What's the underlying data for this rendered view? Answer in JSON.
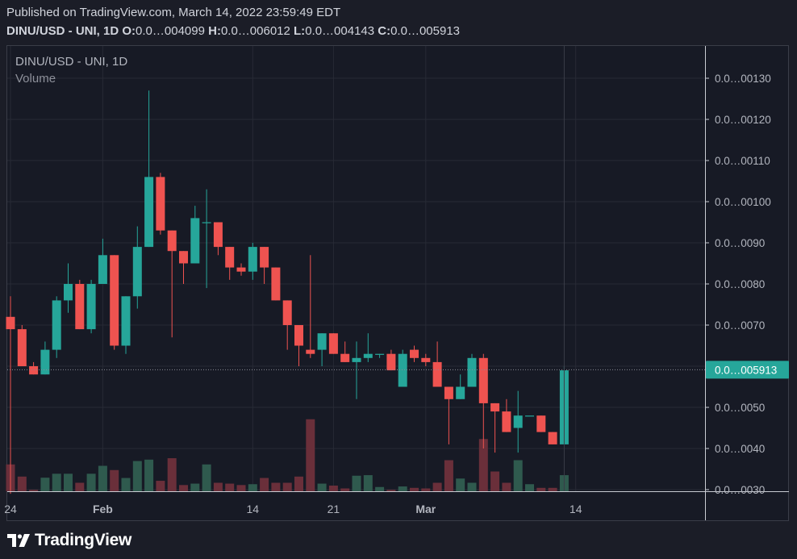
{
  "header": {
    "published": "Published on TradingView.com, March 14, 2022 23:59:49 EDT",
    "symbol": "DINU/USD - UNI, 1D",
    "o_label": "O:",
    "o_value": "0.0…004099",
    "h_label": "H:",
    "h_value": "0.0…006012",
    "l_label": "L:",
    "l_value": "0.0…004143",
    "c_label": "C:",
    "c_value": "0.0…005913"
  },
  "legend": {
    "symbol": "DINU/USD - UNI, 1D",
    "volume": "Volume"
  },
  "price_tag": "0.0…005913",
  "footer": {
    "brand": "TradingView"
  },
  "colors": {
    "up": "#26a69a",
    "down": "#ef5350",
    "background": "#171a25",
    "grid": "#272a35",
    "text": "#b2b5be"
  },
  "chart_data": {
    "type": "candlestick",
    "y_ticks": [
      {
        "value": 1.3e-05,
        "label": "0.0…00130"
      },
      {
        "value": 1.2e-05,
        "label": "0.0…00120"
      },
      {
        "value": 1.1e-05,
        "label": "0.0…00110"
      },
      {
        "value": 1e-05,
        "label": "0.0…00100"
      },
      {
        "value": 9e-06,
        "label": "0.0…0090"
      },
      {
        "value": 8e-06,
        "label": "0.0…0080"
      },
      {
        "value": 7e-06,
        "label": "0.0…0070"
      },
      {
        "value": 6e-06,
        "label": "0.0…0060"
      },
      {
        "value": 5e-06,
        "label": "0.0…0050"
      },
      {
        "value": 4e-06,
        "label": "0.0…0040"
      },
      {
        "value": 3e-06,
        "label": "0.0…0030"
      }
    ],
    "x_ticks": [
      {
        "index": 0,
        "label": "24"
      },
      {
        "index": 8,
        "label": "Feb"
      },
      {
        "index": 21,
        "label": "14"
      },
      {
        "index": 28,
        "label": "21"
      },
      {
        "index": 36,
        "label": "Mar"
      },
      {
        "index": 49,
        "label": "14"
      }
    ],
    "last_price": 5.913e-06,
    "candles": [
      {
        "date": "Jan 24",
        "o": 7.2e-06,
        "h": 7.7e-06,
        "l": 2.9e-06,
        "c": 6.9e-06,
        "v": 0.95
      },
      {
        "date": "Jan 25",
        "o": 6.9e-06,
        "h": 7e-06,
        "l": 6e-06,
        "c": 6e-06,
        "v": 0.52
      },
      {
        "date": "Jan 26",
        "o": 6e-06,
        "h": 6.1e-06,
        "l": 5.8e-06,
        "c": 5.8e-06,
        "v": 0.05
      },
      {
        "date": "Jan 27",
        "o": 5.8e-06,
        "h": 6.6e-06,
        "l": 5.8e-06,
        "c": 6.4e-06,
        "v": 0.48
      },
      {
        "date": "Jan 28",
        "o": 6.4e-06,
        "h": 7.7e-06,
        "l": 6.2e-06,
        "c": 7.6e-06,
        "v": 0.62
      },
      {
        "date": "Jan 29",
        "o": 7.6e-06,
        "h": 8.5e-06,
        "l": 7.3e-06,
        "c": 8e-06,
        "v": 0.62
      },
      {
        "date": "Jan 30",
        "o": 8e-06,
        "h": 8.1e-06,
        "l": 6.9e-06,
        "c": 6.9e-06,
        "v": 0.3
      },
      {
        "date": "Jan 31",
        "o": 6.9e-06,
        "h": 8.1e-06,
        "l": 6.8e-06,
        "c": 8e-06,
        "v": 0.62
      },
      {
        "date": "Feb 1",
        "o": 8e-06,
        "h": 9.1e-06,
        "l": 8e-06,
        "c": 8.7e-06,
        "v": 0.9
      },
      {
        "date": "Feb 2",
        "o": 8.7e-06,
        "h": 8.7e-06,
        "l": 6.4e-06,
        "c": 6.5e-06,
        "v": 0.75
      },
      {
        "date": "Feb 3",
        "o": 6.5e-06,
        "h": 7.7e-06,
        "l": 6.3e-06,
        "c": 7.7e-06,
        "v": 0.47
      },
      {
        "date": "Feb 4",
        "o": 7.7e-06,
        "h": 9.4e-06,
        "l": 7.4e-06,
        "c": 8.9e-06,
        "v": 1.07
      },
      {
        "date": "Feb 5",
        "o": 8.9e-06,
        "h": 1.27e-05,
        "l": 8.9e-06,
        "c": 1.06e-05,
        "v": 1.12
      },
      {
        "date": "Feb 6",
        "o": 1.06e-05,
        "h": 1.07e-05,
        "l": 9.2e-06,
        "c": 9.3e-06,
        "v": 0.37
      },
      {
        "date": "Feb 7",
        "o": 9.3e-06,
        "h": 9.3e-06,
        "l": 6.7e-06,
        "c": 8.8e-06,
        "v": 1.17
      },
      {
        "date": "Feb 8",
        "o": 8.8e-06,
        "h": 8.8e-06,
        "l": 8e-06,
        "c": 8.5e-06,
        "v": 0.22
      },
      {
        "date": "Feb 9",
        "o": 8.5e-06,
        "h": 9.9e-06,
        "l": 8.5e-06,
        "c": 9.6e-06,
        "v": 0.27
      },
      {
        "date": "Feb 10",
        "o": 9.5e-06,
        "h": 1.03e-05,
        "l": 7.9e-06,
        "c": 9.5e-06,
        "v": 0.95
      },
      {
        "date": "Feb 11",
        "o": 9.5e-06,
        "h": 9.5e-06,
        "l": 8.7e-06,
        "c": 8.9e-06,
        "v": 0.3
      },
      {
        "date": "Feb 12",
        "o": 8.9e-06,
        "h": 8.9e-06,
        "l": 8.1e-06,
        "c": 8.4e-06,
        "v": 0.27
      },
      {
        "date": "Feb 13",
        "o": 8.4e-06,
        "h": 8.5e-06,
        "l": 8.2e-06,
        "c": 8.3e-06,
        "v": 0.22
      },
      {
        "date": "Feb 14",
        "o": 8.3e-06,
        "h": 9e-06,
        "l": 8.1e-06,
        "c": 8.9e-06,
        "v": 0.25
      },
      {
        "date": "Feb 15",
        "o": 8.9e-06,
        "h": 8.9e-06,
        "l": 8e-06,
        "c": 8.4e-06,
        "v": 0.47
      },
      {
        "date": "Feb 16",
        "o": 8.4e-06,
        "h": 8.4e-06,
        "l": 7.6e-06,
        "c": 7.6e-06,
        "v": 0.3
      },
      {
        "date": "Feb 17",
        "o": 7.6e-06,
        "h": 7.6e-06,
        "l": 6.4e-06,
        "c": 7e-06,
        "v": 0.3
      },
      {
        "date": "Feb 18",
        "o": 7e-06,
        "h": 7e-06,
        "l": 6e-06,
        "c": 6.5e-06,
        "v": 0.52
      },
      {
        "date": "Feb 19",
        "o": 6.4e-06,
        "h": 8.7e-06,
        "l": 6.2e-06,
        "c": 6.3e-06,
        "v": 2.55
      },
      {
        "date": "Feb 20",
        "o": 6.4e-06,
        "h": 6.8e-06,
        "l": 6e-06,
        "c": 6.8e-06,
        "v": 0.27
      },
      {
        "date": "Feb 21",
        "o": 6.8e-06,
        "h": 6.8e-06,
        "l": 6.3e-06,
        "c": 6.3e-06,
        "v": 0.2
      },
      {
        "date": "Feb 22",
        "o": 6.3e-06,
        "h": 6.6e-06,
        "l": 6.1e-06,
        "c": 6.1e-06,
        "v": 0.1
      },
      {
        "date": "Feb 23",
        "o": 6.1e-06,
        "h": 6.6e-06,
        "l": 5.2e-06,
        "c": 6.2e-06,
        "v": 0.55
      },
      {
        "date": "Feb 24",
        "o": 6.2e-06,
        "h": 6.8e-06,
        "l": 6.1e-06,
        "c": 6.3e-06,
        "v": 0.57
      },
      {
        "date": "Feb 25",
        "o": 6.3e-06,
        "h": 6.3e-06,
        "l": 6.2e-06,
        "c": 6.3e-06,
        "v": 0.15
      },
      {
        "date": "Feb 26",
        "o": 6.3e-06,
        "h": 6.4e-06,
        "l": 5.9e-06,
        "c": 5.9e-06,
        "v": 0.05
      },
      {
        "date": "Feb 27",
        "o": 5.5e-06,
        "h": 6.4e-06,
        "l": 5.5e-06,
        "c": 6.3e-06,
        "v": 0.17
      },
      {
        "date": "Feb 28",
        "o": 6.4e-06,
        "h": 6.5e-06,
        "l": 6.1e-06,
        "c": 6.2e-06,
        "v": 0.12
      },
      {
        "date": "Mar 1",
        "o": 6.2e-06,
        "h": 6.3e-06,
        "l": 6e-06,
        "c": 6.1e-06,
        "v": 0.1
      },
      {
        "date": "Mar 2",
        "o": 6.1e-06,
        "h": 6.6e-06,
        "l": 5.5e-06,
        "c": 5.5e-06,
        "v": 0.3
      },
      {
        "date": "Mar 3",
        "o": 5.5e-06,
        "h": 5.5e-06,
        "l": 4.1e-06,
        "c": 5.2e-06,
        "v": 1.1
      },
      {
        "date": "Mar 4",
        "o": 5.2e-06,
        "h": 5.8e-06,
        "l": 5.2e-06,
        "c": 5.5e-06,
        "v": 0.45
      },
      {
        "date": "Mar 5",
        "o": 5.5e-06,
        "h": 6.3e-06,
        "l": 5.5e-06,
        "c": 6.2e-06,
        "v": 0.3
      },
      {
        "date": "Mar 6",
        "o": 6.2e-06,
        "h": 6.3e-06,
        "l": 4e-06,
        "c": 5.1e-06,
        "v": 1.85
      },
      {
        "date": "Mar 7",
        "o": 5.1e-06,
        "h": 5.1e-06,
        "l": 3.9e-06,
        "c": 4.9e-06,
        "v": 0.7
      },
      {
        "date": "Mar 8",
        "o": 4.9e-06,
        "h": 5.2e-06,
        "l": 4.4e-06,
        "c": 4.4e-06,
        "v": 0.3
      },
      {
        "date": "Mar 9",
        "o": 4.5e-06,
        "h": 5.4e-06,
        "l": 3.9e-06,
        "c": 4.8e-06,
        "v": 1.1
      },
      {
        "date": "Mar 10",
        "o": 4.8e-06,
        "h": 4.8e-06,
        "l": 4.8e-06,
        "c": 4.8e-06,
        "v": 0.25
      },
      {
        "date": "Mar 11",
        "o": 4.8e-06,
        "h": 4.8e-06,
        "l": 4.4e-06,
        "c": 4.4e-06,
        "v": 0.12
      },
      {
        "date": "Mar 12",
        "o": 4.4e-06,
        "h": 4.4e-06,
        "l": 4.1e-06,
        "c": 4.1e-06,
        "v": 0.12
      },
      {
        "date": "Mar 13",
        "o": 4.1e-06,
        "h": 6e-06,
        "l": 4.1e-06,
        "c": 5.9e-06,
        "v": 0.57
      }
    ]
  }
}
